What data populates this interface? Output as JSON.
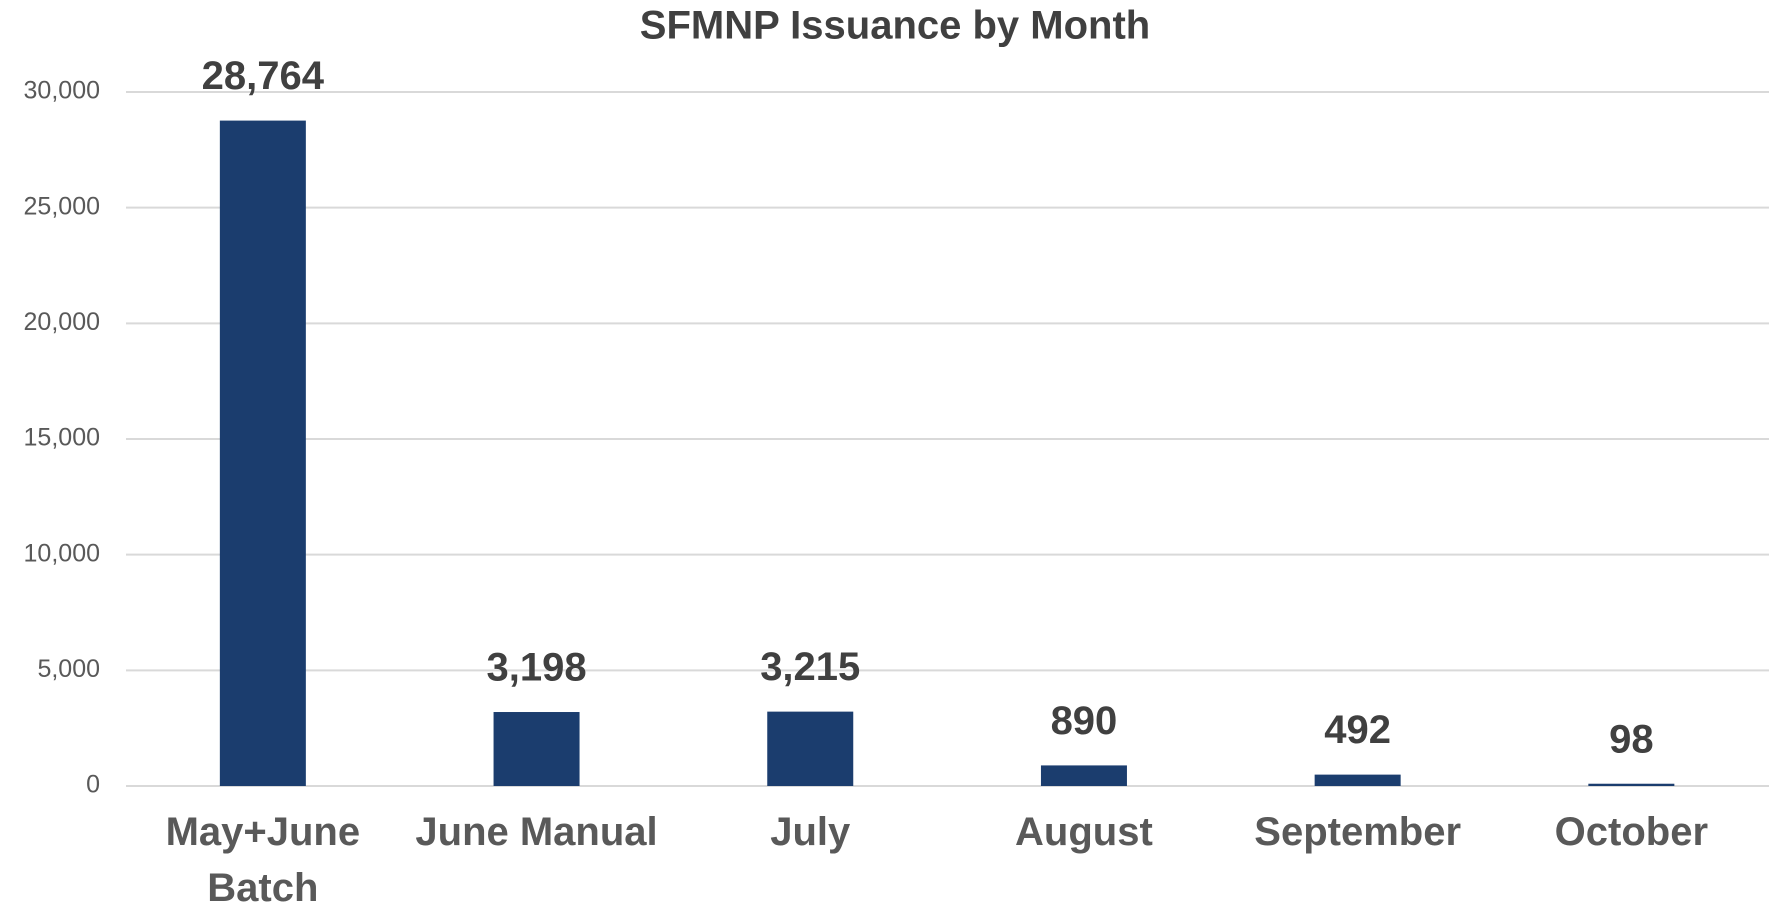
{
  "chart_data": {
    "type": "bar",
    "title": "SFMNP Issuance by Month",
    "categories": [
      "May+June Batch",
      "June Manual",
      "July",
      "August",
      "September",
      "October"
    ],
    "values": [
      28764,
      3198,
      3215,
      890,
      492,
      98
    ],
    "value_labels": [
      "28,764",
      "3,198",
      "3,215",
      "890",
      "492",
      "98"
    ],
    "color": "#1b3d6e",
    "ylim": [
      0,
      30000
    ],
    "yticks": [
      0,
      {
        "value": 5000,
        "label": "5,000"
      },
      {
        "value": 10000,
        "label": "10,000"
      },
      {
        "value": 15000,
        "label": "15,000"
      },
      {
        "value": 20000,
        "label": "20,000"
      },
      {
        "value": 25000,
        "label": "25,000"
      },
      {
        "value": 30000,
        "label": "30,000"
      }
    ],
    "grid": true
  }
}
